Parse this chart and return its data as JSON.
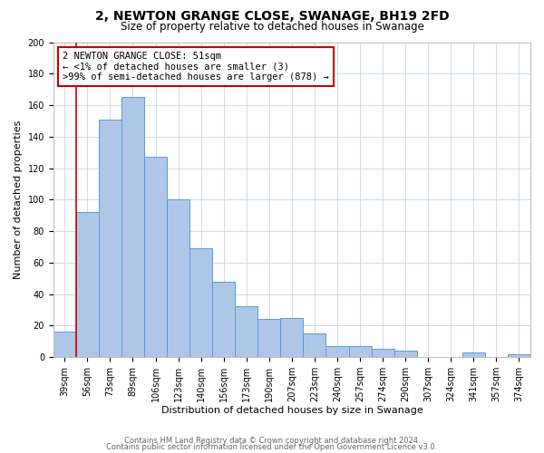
{
  "title": "2, NEWTON GRANGE CLOSE, SWANAGE, BH19 2FD",
  "subtitle": "Size of property relative to detached houses in Swanage",
  "xlabel": "Distribution of detached houses by size in Swanage",
  "ylabel": "Number of detached properties",
  "bin_labels": [
    "39sqm",
    "56sqm",
    "73sqm",
    "89sqm",
    "106sqm",
    "123sqm",
    "140sqm",
    "156sqm",
    "173sqm",
    "190sqm",
    "207sqm",
    "223sqm",
    "240sqm",
    "257sqm",
    "274sqm",
    "290sqm",
    "307sqm",
    "324sqm",
    "341sqm",
    "357sqm",
    "374sqm"
  ],
  "bin_values": [
    16,
    92,
    151,
    165,
    127,
    100,
    69,
    48,
    32,
    24,
    25,
    15,
    7,
    7,
    5,
    4,
    0,
    0,
    3,
    0,
    2
  ],
  "bar_color": "#aec6e8",
  "bar_edge_color": "#5b9bd5",
  "background_color": "#ffffff",
  "grid_color": "#c8d4e8",
  "annotation_box_text": "2 NEWTON GRANGE CLOSE: 51sqm\n← <1% of detached houses are smaller (3)\n>99% of semi-detached houses are larger (878) →",
  "annotation_box_edge_color": "#cc0000",
  "red_line_x": 0.5,
  "ylim": [
    0,
    200
  ],
  "yticks": [
    0,
    20,
    40,
    60,
    80,
    100,
    120,
    140,
    160,
    180,
    200
  ],
  "footer_line1": "Contains HM Land Registry data © Crown copyright and database right 2024.",
  "footer_line2": "Contains public sector information licensed under the Open Government Licence v3.0.",
  "title_fontsize": 10,
  "subtitle_fontsize": 8.5,
  "xlabel_fontsize": 8,
  "ylabel_fontsize": 8,
  "tick_fontsize": 7,
  "footer_fontsize": 6
}
